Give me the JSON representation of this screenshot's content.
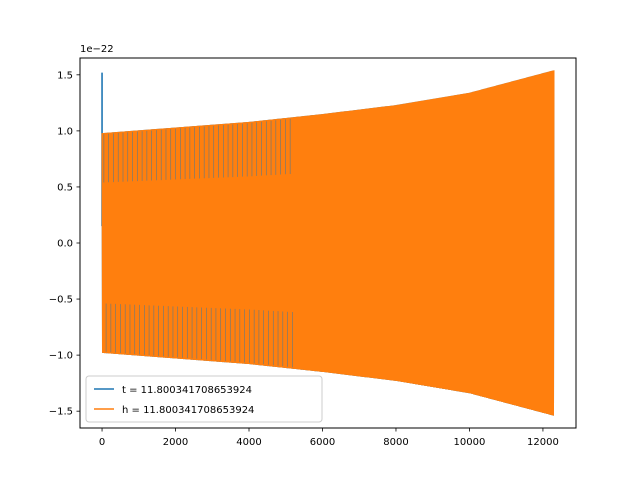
{
  "chart_data": {
    "type": "line",
    "scale_label": "1e−22",
    "xlim": [
      -600,
      12900
    ],
    "ylim": [
      -1.65,
      1.65
    ],
    "x_ticks": [
      0,
      2000,
      4000,
      6000,
      8000,
      10000,
      12000
    ],
    "x_tick_labels": [
      "0",
      "2000",
      "4000",
      "6000",
      "8000",
      "10000",
      "12000"
    ],
    "y_ticks": [
      1.5,
      1.0,
      0.5,
      0.0,
      -0.5,
      -1.0,
      -1.5
    ],
    "y_tick_labels": [
      "1.5",
      "1.0",
      "0.5",
      "0.0",
      "−0.5",
      "−1.0",
      "−1.5"
    ],
    "grid": false,
    "legend_position": "lower-left",
    "series": [
      {
        "name": "t = 11.800341708653924",
        "color": "#1f77b4",
        "x_range": [
          0,
          12290
        ],
        "initial_spike": 1.52,
        "envelope": [
          {
            "x": 0,
            "amplitude": 0.98
          },
          {
            "x": 2000,
            "amplitude": 1.03
          },
          {
            "x": 4000,
            "amplitude": 1.08
          },
          {
            "x": 6000,
            "amplitude": 1.15
          },
          {
            "x": 8000,
            "amplitude": 1.23
          },
          {
            "x": 10000,
            "amplitude": 1.34
          },
          {
            "x": 12290,
            "amplitude": 1.54
          }
        ]
      },
      {
        "name": "h = 11.800341708653924",
        "color": "#ff7f0e",
        "x_range": [
          0,
          12290
        ],
        "envelope": [
          {
            "x": 0,
            "amplitude": 0.98
          },
          {
            "x": 2000,
            "amplitude": 1.03
          },
          {
            "x": 4000,
            "amplitude": 1.08
          },
          {
            "x": 6000,
            "amplitude": 1.15
          },
          {
            "x": 8000,
            "amplitude": 1.23
          },
          {
            "x": 10000,
            "amplitude": 1.34
          },
          {
            "x": 12290,
            "amplitude": 1.54
          }
        ]
      }
    ]
  }
}
